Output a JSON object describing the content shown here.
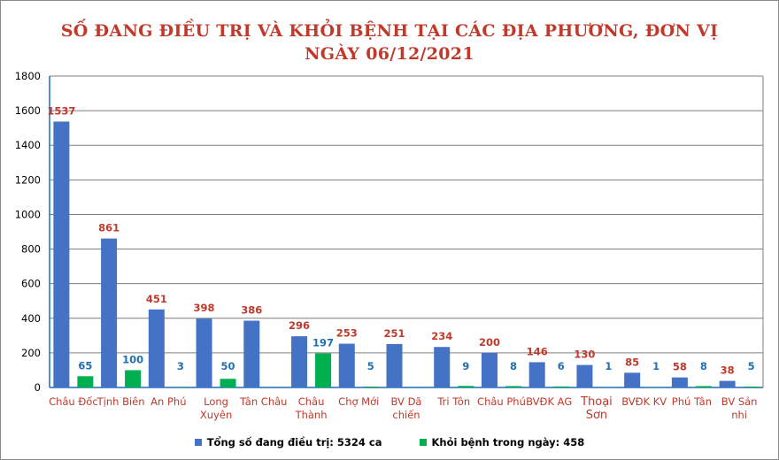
{
  "colors": {
    "series_total": "#4472c4",
    "series_recovered": "#00b050",
    "title": "#c0392b",
    "label_total": "#c0392b",
    "label_recovered": "#1f6fb5",
    "axis_line": "#1f6fb5",
    "grid": "#7f7f7f"
  },
  "chart_data": {
    "type": "bar",
    "title": "SỐ ĐANG ĐIỀU TRỊ VÀ KHỎI BỆNH TẠI CÁC ĐỊA PHƯƠNG, ĐƠN VỊ",
    "subtitle": "NGÀY 06/12/2021",
    "xlabel": "",
    "ylabel": "",
    "ylim": [
      0,
      1800
    ],
    "yticks": [
      0,
      200,
      400,
      600,
      800,
      1000,
      1200,
      1400,
      1600,
      1800
    ],
    "grid": true,
    "legend_position": "bottom",
    "categories": [
      [
        "Châu Đốc"
      ],
      [
        "Tịnh Biên"
      ],
      [
        "An Phú"
      ],
      [
        "Long",
        "Xuyên"
      ],
      [
        "Tân Châu"
      ],
      [
        "Châu",
        "Thành"
      ],
      [
        "Chợ Mới"
      ],
      [
        "BV Dã",
        "chiến"
      ],
      [
        "Tri Tôn"
      ],
      [
        "Châu Phú"
      ],
      [
        "BVĐK AG"
      ],
      [
        "Thoại",
        "Sơn"
      ],
      [
        "BVĐK KV"
      ],
      [
        "Phú Tân"
      ],
      [
        "BV Sản",
        "nhi"
      ]
    ],
    "series": [
      {
        "name": "Tổng số  đang điều trị:  5324 ca",
        "values": [
          1537,
          861,
          451,
          398,
          386,
          296,
          253,
          251,
          234,
          200,
          146,
          130,
          85,
          58,
          38
        ],
        "labels": [
          "1537",
          "861",
          "451",
          "398",
          "386",
          "296",
          "253",
          "251",
          "234",
          "200",
          "146",
          "130",
          "85",
          "58",
          "38"
        ]
      },
      {
        "name": "Khỏi bệnh trong ngày: 458",
        "values": [
          65,
          100,
          3,
          50,
          0,
          197,
          5,
          0,
          9,
          8,
          6,
          1,
          1,
          8,
          5
        ],
        "labels": [
          "65",
          "100",
          "3",
          "50",
          "",
          "197",
          "5",
          "",
          "9",
          "8",
          "6",
          "1",
          "1",
          "8",
          "5"
        ]
      }
    ]
  }
}
